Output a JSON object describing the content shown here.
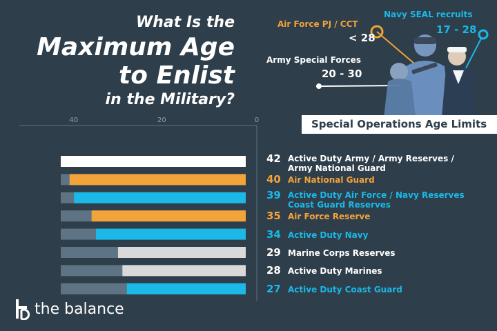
{
  "title": {
    "line1": "What Is the",
    "line2": "Maximum Age",
    "line3": "to Enlist",
    "line4": "in the Military?"
  },
  "callouts": {
    "pj_label": "Air Force PJ / CCT",
    "pj_value": "< 28",
    "seal_label": "Navy SEAL recruits",
    "seal_value": "17 - 28",
    "army_label": "Army Special Forces",
    "army_value": "20 - 30"
  },
  "ops_banner": "Special Operations Age Limits",
  "brand": {
    "name": "the balance"
  },
  "colors": {
    "background": "#2e3e4a",
    "white": "#ffffff",
    "orange": "#f2a33a",
    "blue": "#1bb8e8",
    "light_gray": "#d9d9d9",
    "bar_track": "#5e7484"
  },
  "chart_data": {
    "type": "bar",
    "orientation": "horizontal",
    "direction": "reversed",
    "xlim": [
      0,
      42
    ],
    "xticks": [
      "40",
      "20",
      "0"
    ],
    "xtick_values": [
      40,
      20,
      0
    ],
    "categories": [
      "Active Duty Army / Army Reserves / Army National Guard",
      "Air National Guard",
      "Active Duty Air Force / Navy Reserves Coast Guard Reserves",
      "Air Force Reserve",
      "Active Duty Navy",
      "Marine Corps Reserves",
      "Active Duty Marines",
      "Active Duty Coast Guard"
    ],
    "values": [
      42,
      40,
      39,
      35,
      34,
      29,
      28,
      27
    ],
    "value_labels": [
      "42",
      "40",
      "39",
      "35",
      "34",
      "29",
      "28",
      "27"
    ],
    "label_lines": [
      [
        "Active Duty Army / Army Reserves /",
        "Army National Guard"
      ],
      [
        "Air National Guard"
      ],
      [
        "Active Duty Air Force / Navy Reserves",
        "Coast Guard Reserves"
      ],
      [
        "Air Force Reserve"
      ],
      [
        "Active Duty Navy"
      ],
      [
        "Marine Corps Reserves"
      ],
      [
        "Active Duty Marines"
      ],
      [
        "Active Duty Coast Guard"
      ]
    ],
    "bar_colors": [
      "#ffffff",
      "#f2a33a",
      "#1bb8e8",
      "#f2a33a",
      "#1bb8e8",
      "#d9d9d9",
      "#d9d9d9",
      "#1bb8e8"
    ],
    "label_colors": [
      "#ffffff",
      "#f2a33a",
      "#1bb8e8",
      "#f2a33a",
      "#1bb8e8",
      "#ffffff",
      "#ffffff",
      "#1bb8e8"
    ]
  }
}
